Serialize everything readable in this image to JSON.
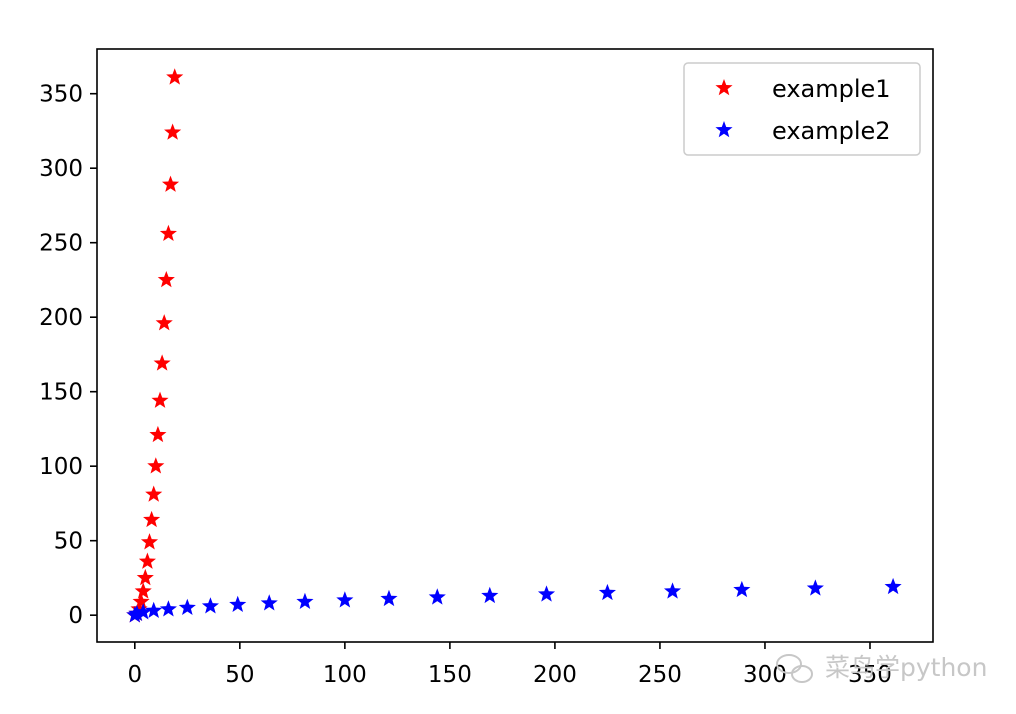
{
  "chart_data": {
    "type": "scatter",
    "xlim": [
      -18,
      380
    ],
    "ylim": [
      -18,
      380
    ],
    "x_ticks": [
      0,
      50,
      100,
      150,
      200,
      250,
      300,
      350
    ],
    "y_ticks": [
      0,
      50,
      100,
      150,
      200,
      250,
      300,
      350
    ],
    "grid": false,
    "legend_position": "top-right",
    "marker": "star",
    "series": [
      {
        "name": "example1",
        "color": "#ff0000",
        "x": [
          0,
          1,
          2,
          3,
          4,
          5,
          6,
          7,
          8,
          9,
          10,
          11,
          12,
          13,
          14,
          15,
          16,
          17,
          18,
          19
        ],
        "y": [
          0,
          1,
          4,
          9,
          16,
          25,
          36,
          49,
          64,
          81,
          100,
          121,
          144,
          169,
          196,
          225,
          256,
          289,
          324,
          361
        ]
      },
      {
        "name": "example2",
        "color": "#0000ff",
        "x": [
          0,
          1,
          4,
          9,
          16,
          25,
          36,
          49,
          64,
          81,
          100,
          121,
          144,
          169,
          196,
          225,
          256,
          289,
          324,
          361
        ],
        "y": [
          0,
          1,
          2,
          3,
          4,
          5,
          6,
          7,
          8,
          9,
          10,
          11,
          12,
          13,
          14,
          15,
          16,
          17,
          18,
          19
        ]
      }
    ]
  },
  "watermark": {
    "icon": "wechat-icon",
    "text": "菜鸟学python"
  }
}
